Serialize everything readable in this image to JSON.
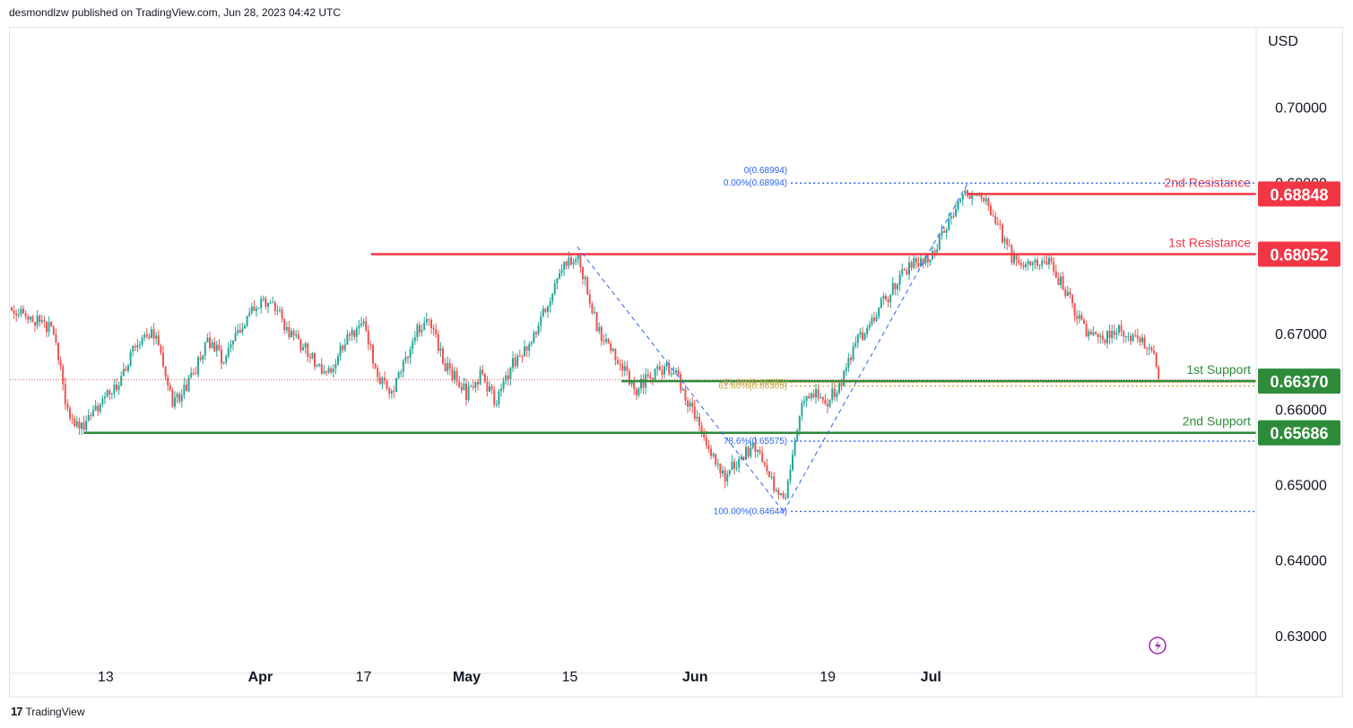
{
  "header": {
    "text": "desmondlzw published on TradingView.com, Jun 28, 2023 04:42 UTC"
  },
  "footer": {
    "logo_icon": "tradingview-logo-icon",
    "brand": "TradingView"
  },
  "colors": {
    "up": "#26a69a",
    "down": "#ef5350",
    "resistance": "#f23645",
    "support": "#2e8b3a",
    "fib": "#2962ff",
    "fib_mid": "#c8a23c"
  },
  "chart_data": {
    "type": "candlestick",
    "currency": "USD",
    "y_range": [
      0.625,
      0.7105
    ],
    "y_ticks": [
      {
        "value": 0.7,
        "label": "0.70000"
      },
      {
        "value": 0.69,
        "label": "0.69000"
      },
      {
        "value": 0.67,
        "label": "0.67000"
      },
      {
        "value": 0.66,
        "label": "0.66000"
      },
      {
        "value": 0.65,
        "label": "0.65000"
      },
      {
        "value": 0.64,
        "label": "0.64000"
      },
      {
        "value": 0.63,
        "label": "0.63000"
      }
    ],
    "x_ticks": [
      {
        "date": "2023-03-13",
        "label": "13",
        "bold": false
      },
      {
        "date": "2023-04-03",
        "label": "Apr",
        "bold": true
      },
      {
        "date": "2023-04-17",
        "label": "17",
        "bold": false
      },
      {
        "date": "2023-05-01",
        "label": "May",
        "bold": true
      },
      {
        "date": "2023-05-15",
        "label": "15",
        "bold": false
      },
      {
        "date": "2023-06-01",
        "label": "Jun",
        "bold": true
      },
      {
        "date": "2023-06-19",
        "label": "19",
        "bold": false
      },
      {
        "date": "2023-07-03",
        "label": "Jul",
        "bold": true
      }
    ],
    "price_path": [
      [
        "2023-02-28",
        0.6735
      ],
      [
        "2023-03-03",
        0.672
      ],
      [
        "2023-03-06",
        0.6705
      ],
      [
        "2023-03-08",
        0.6585
      ],
      [
        "2023-03-10",
        0.6575
      ],
      [
        "2023-03-13",
        0.6615
      ],
      [
        "2023-03-15",
        0.664
      ],
      [
        "2023-03-17",
        0.669
      ],
      [
        "2023-03-20",
        0.67
      ],
      [
        "2023-03-22",
        0.6605
      ],
      [
        "2023-03-24",
        0.663
      ],
      [
        "2023-03-27",
        0.669
      ],
      [
        "2023-03-29",
        0.6665
      ],
      [
        "2023-03-31",
        0.67
      ],
      [
        "2023-04-03",
        0.6745
      ],
      [
        "2023-04-05",
        0.6735
      ],
      [
        "2023-04-07",
        0.67
      ],
      [
        "2023-04-10",
        0.667
      ],
      [
        "2023-04-12",
        0.664
      ],
      [
        "2023-04-14",
        0.6685
      ],
      [
        "2023-04-17",
        0.6715
      ],
      [
        "2023-04-19",
        0.664
      ],
      [
        "2023-04-21",
        0.6625
      ],
      [
        "2023-04-24",
        0.67
      ],
      [
        "2023-04-26",
        0.672
      ],
      [
        "2023-04-28",
        0.666
      ],
      [
        "2023-05-01",
        0.662
      ],
      [
        "2023-05-03",
        0.6645
      ],
      [
        "2023-05-05",
        0.661
      ],
      [
        "2023-05-08",
        0.6675
      ],
      [
        "2023-05-10",
        0.669
      ],
      [
        "2023-05-12",
        0.674
      ],
      [
        "2023-05-14",
        0.679
      ],
      [
        "2023-05-16",
        0.68
      ],
      [
        "2023-05-17",
        0.677
      ],
      [
        "2023-05-19",
        0.67
      ],
      [
        "2023-05-22",
        0.666
      ],
      [
        "2023-05-24",
        0.6625
      ],
      [
        "2023-05-26",
        0.6645
      ],
      [
        "2023-05-29",
        0.6655
      ],
      [
        "2023-05-31",
        0.661
      ],
      [
        "2023-06-02",
        0.657
      ],
      [
        "2023-06-05",
        0.651
      ],
      [
        "2023-06-07",
        0.6535
      ],
      [
        "2023-06-09",
        0.655
      ],
      [
        "2023-06-12",
        0.649
      ],
      [
        "2023-06-13",
        0.6475
      ],
      [
        "2023-06-14",
        0.653
      ],
      [
        "2023-06-15",
        0.6585
      ],
      [
        "2023-06-16",
        0.6625
      ],
      [
        "2023-06-19",
        0.661
      ],
      [
        "2023-06-21",
        0.664
      ],
      [
        "2023-06-23",
        0.669
      ],
      [
        "2023-06-26",
        0.6735
      ],
      [
        "2023-06-28",
        0.676
      ],
      [
        "2023-06-30",
        0.679
      ],
      [
        "2023-07-03",
        0.68
      ],
      [
        "2023-07-05",
        0.684
      ],
      [
        "2023-07-07",
        0.6885
      ],
      [
        "2023-07-10",
        0.688
      ],
      [
        "2023-07-12",
        0.6845
      ],
      [
        "2023-07-14",
        0.68
      ],
      [
        "2023-07-17",
        0.679
      ],
      [
        "2023-07-19",
        0.6795
      ],
      [
        "2023-07-21",
        0.676
      ],
      [
        "2023-07-24",
        0.6705
      ],
      [
        "2023-07-26",
        0.669
      ],
      [
        "2023-07-28",
        0.6705
      ],
      [
        "2023-07-31",
        0.669
      ],
      [
        "2023-08-02",
        0.668
      ],
      [
        "2023-08-03",
        0.664
      ]
    ],
    "last_price": 0.6639,
    "levels": [
      {
        "name": "2nd Resistance",
        "label": "2nd Resistance",
        "value": 0.68848,
        "value_label": "0.68848",
        "type": "resistance",
        "from": "2023-07-08"
      },
      {
        "name": "1st Resistance",
        "label": "1st Resistance",
        "value": 0.68052,
        "value_label": "0.68052",
        "type": "resistance",
        "from": "2023-04-18"
      },
      {
        "name": "1st Support",
        "label": "1st Support",
        "value": 0.6637,
        "value_label": "0.66370",
        "type": "support",
        "from": "2023-05-22"
      },
      {
        "name": "2nd Support",
        "label": "2nd Support",
        "value": 0.65686,
        "value_label": "0.65686",
        "type": "support",
        "from": "2023-03-10"
      }
    ],
    "fib_a": {
      "anchor_from": [
        "2023-05-16",
        0.6815
      ],
      "anchor_to": [
        "2023-06-13",
        0.6464
      ],
      "levels": [
        {
          "label": "61.8%(0.66353)",
          "value": 0.66353
        },
        {
          "label": "78.6%(0.65575)",
          "value": 0.65575
        },
        {
          "label": "100.00%(0.64644)",
          "value": 0.64644
        }
      ]
    },
    "fib_b": {
      "anchor_from": [
        "2023-06-13",
        0.6464
      ],
      "anchor_to": [
        "2023-07-08",
        0.68994
      ],
      "levels": [
        {
          "label": "0(0.68994)",
          "value": 0.68994
        },
        {
          "label": "0.00%(0.68994)",
          "value": 0.68994
        },
        {
          "label": "61.80%(0.66305)",
          "value": 0.66305
        }
      ]
    }
  }
}
